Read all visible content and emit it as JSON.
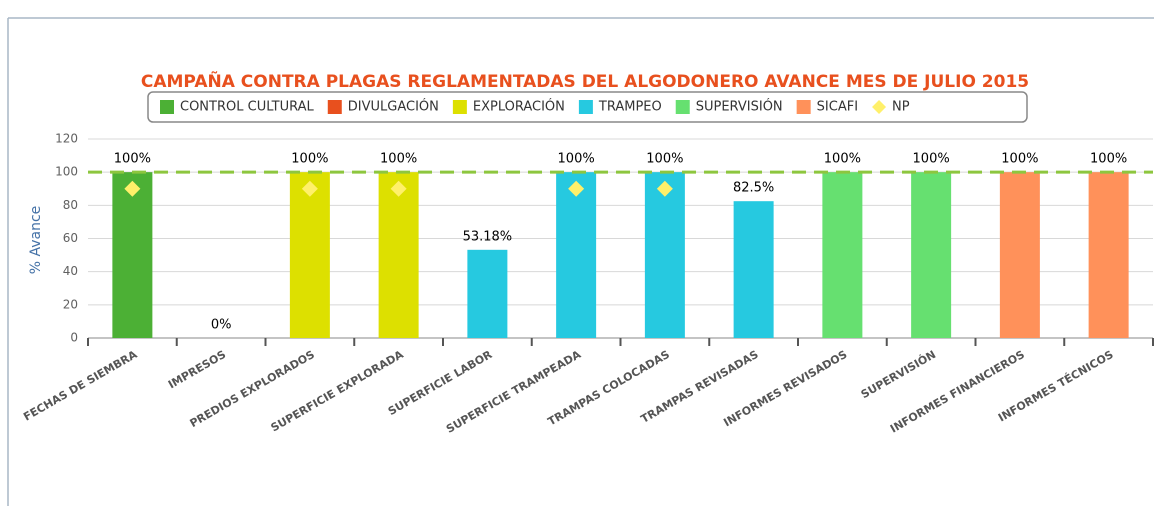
{
  "chart_data": {
    "type": "bar",
    "title": "CAMPAÑA CONTRA PLAGAS REGLAMENTADAS DEL ALGODONERO AVANCE MES DE JULIO 2015",
    "y_label": "% Avance",
    "categories": [
      "FECHAS DE SIEMBRA",
      "IMPRESOS",
      "PREDIOS EXPLORADOS",
      "SUPERFICIE EXPLORADA",
      "SUPERFICIE LABOR",
      "SUPERFICIE TRAMPEADA",
      "TRAMPAS COLOCADAS",
      "TRAMPAS REVISADAS",
      "INFORMES REVISADOS",
      "SUPERVISIÓN",
      "INFORMES FINANCIEROS",
      "INFORMES TÉCNICOS"
    ],
    "series": [
      {
        "name": "CONTROL CULTURAL",
        "color": "#4cb035",
        "values": [
          100,
          null,
          null,
          null,
          null,
          null,
          null,
          null,
          null,
          null,
          null,
          null
        ],
        "value_labels": [
          "100%",
          null,
          null,
          null,
          null,
          null,
          null,
          null,
          null,
          null,
          null,
          null
        ]
      },
      {
        "name": "DIVULGACIÓN",
        "color": "#e8501e",
        "values": [
          null,
          0,
          null,
          null,
          null,
          null,
          null,
          null,
          null,
          null,
          null,
          null
        ],
        "value_labels": [
          null,
          "0%",
          null,
          null,
          null,
          null,
          null,
          null,
          null,
          null,
          null,
          null
        ]
      },
      {
        "name": "EXPLORACIÓN",
        "color": "#dde000",
        "values": [
          null,
          null,
          100,
          100,
          null,
          null,
          null,
          null,
          null,
          null,
          null,
          null
        ],
        "value_labels": [
          null,
          null,
          "100%",
          "100%",
          null,
          null,
          null,
          null,
          null,
          null,
          null,
          null
        ]
      },
      {
        "name": "TRAMPEO",
        "color": "#26c9e0",
        "values": [
          null,
          null,
          null,
          null,
          53.18,
          100,
          100,
          82.5,
          null,
          null,
          null,
          null
        ],
        "value_labels": [
          null,
          null,
          null,
          null,
          "53.18%",
          "100%",
          "100%",
          "82.5%",
          null,
          null,
          null,
          null
        ]
      },
      {
        "name": "SUPERVISIÓN",
        "color": "#66e070",
        "values": [
          null,
          null,
          null,
          null,
          null,
          null,
          null,
          null,
          100,
          100,
          null,
          null
        ],
        "value_labels": [
          null,
          null,
          null,
          null,
          null,
          null,
          null,
          null,
          "100%",
          "100%",
          null,
          null
        ]
      },
      {
        "name": "SICAFI",
        "color": "#ff915a",
        "values": [
          null,
          null,
          null,
          null,
          null,
          null,
          null,
          null,
          null,
          null,
          100,
          100
        ],
        "value_labels": [
          null,
          null,
          null,
          null,
          null,
          null,
          null,
          null,
          null,
          null,
          "100%",
          "100%"
        ]
      },
      {
        "name": "NP",
        "type": "scatter",
        "color": "#fff06a",
        "values": [
          90,
          null,
          90,
          90,
          null,
          90,
          90,
          null,
          null,
          null,
          null,
          null
        ]
      }
    ],
    "reference_line": {
      "value": 100,
      "color": "#8dc63f"
    },
    "ylim": [
      0,
      120
    ],
    "yticks": [
      0,
      20,
      40,
      60,
      80,
      100,
      120
    ],
    "grid": true
  }
}
